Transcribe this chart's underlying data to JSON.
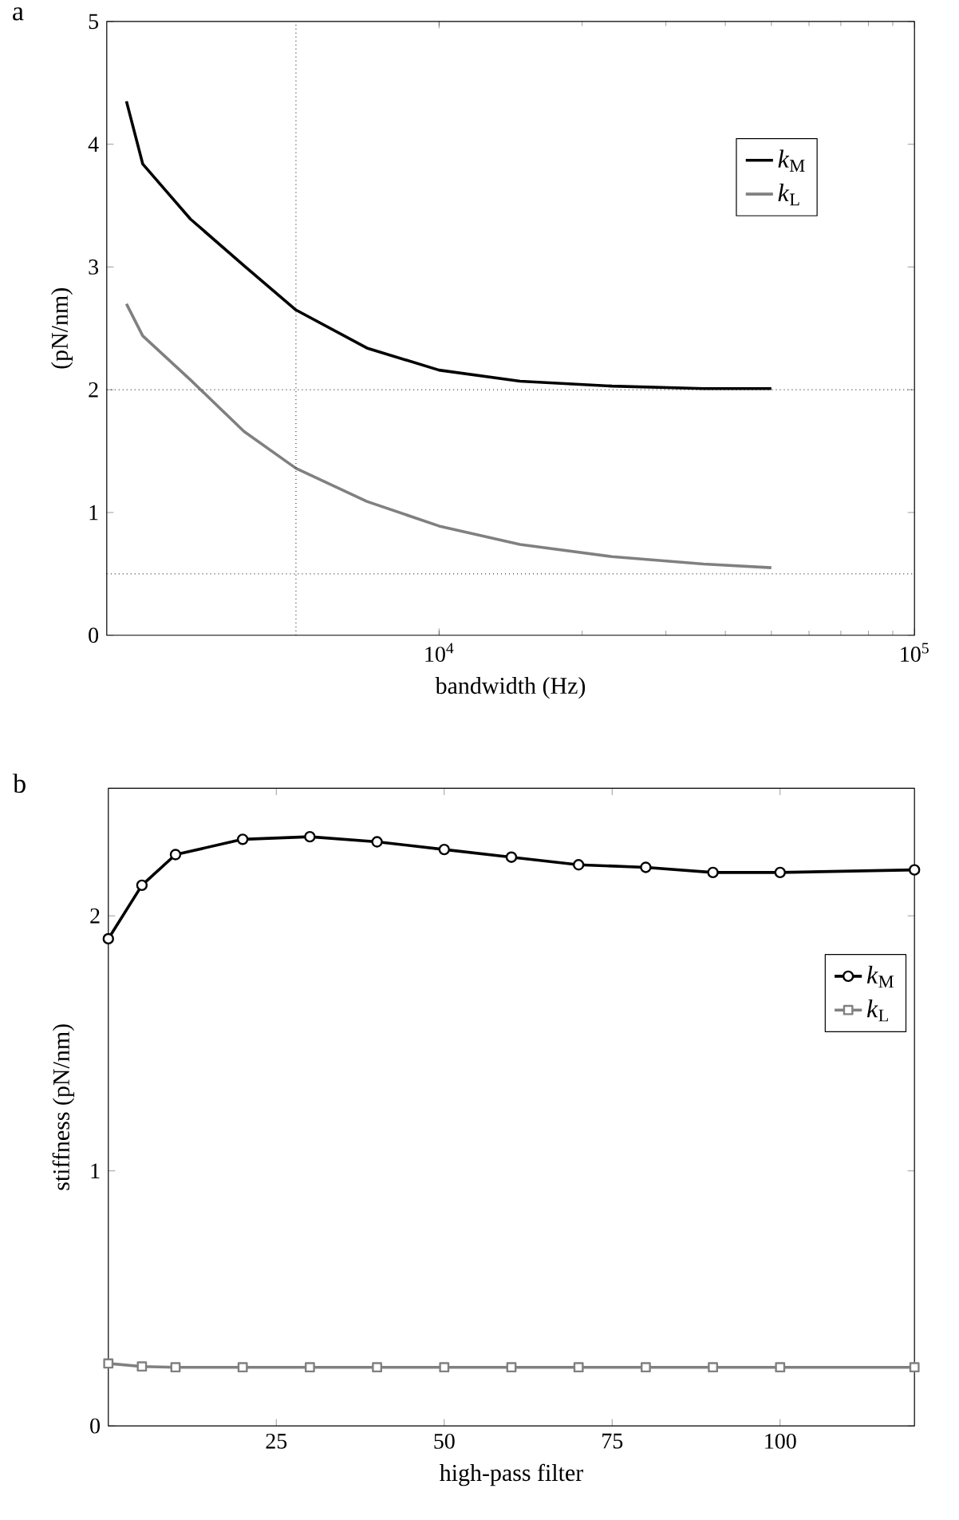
{
  "chart_data": [
    {
      "type": "line",
      "title": "a",
      "xlabel": "bandwidth (Hz)",
      "ylabel": "(pN/nm)",
      "log": "x",
      "legend": "top right",
      "xlim": [
        2000,
        100000
      ],
      "xticks": [
        {
          "value": 10000,
          "label": "10$^{4}$"
        },
        {
          "value": 100000,
          "label": "10$^{5}$"
        }
      ],
      "ylim": [
        0,
        5
      ],
      "yticks": [
        0,
        1,
        2,
        3,
        4,
        5
      ],
      "ref_lines": [
        {
          "axis": "y",
          "value": 2,
          "line_style": "dotted"
        },
        {
          "axis": "y",
          "value": 0.5,
          "line_style": "dotted"
        },
        {
          "axis": "x",
          "value": 5000,
          "line_style": "dotted"
        }
      ],
      "series": [
        {
          "name": "*k*$_{M}$",
          "color": "#000000",
          "x": [
            2200,
            2380,
            3000,
            3890,
            5000,
            7050,
            10000,
            14800,
            23100,
            36000,
            50000
          ],
          "values": [
            4.35,
            3.84,
            3.39,
            3.01,
            2.65,
            2.34,
            2.16,
            2.07,
            2.03,
            2.01,
            2.01
          ]
        },
        {
          "name": "*k*$_{L}$",
          "color": "#808080",
          "x": [
            2200,
            2380,
            3000,
            3890,
            5000,
            7050,
            10000,
            14800,
            23100,
            36000,
            50000
          ],
          "values": [
            2.7,
            2.44,
            2.08,
            1.66,
            1.36,
            1.09,
            0.89,
            0.74,
            0.64,
            0.58,
            0.55
          ]
        }
      ]
    },
    {
      "type": "line",
      "title": "b",
      "xlabel": "high-pass filter",
      "ylabel": "stiffness  (pN/nm)",
      "legend": "right",
      "xlim": [
        0,
        120
      ],
      "xticks": [
        25,
        50,
        75,
        100
      ],
      "ylim": [
        0,
        2.5
      ],
      "yticks": [
        0,
        1,
        2
      ],
      "series": [
        {
          "name": "*k*$_{M}$",
          "color": "#000000",
          "marker": "circle",
          "x": [
            0,
            5,
            10,
            20,
            30,
            40,
            50,
            60,
            70,
            80,
            90,
            100,
            120
          ],
          "values": [
            1.91,
            2.12,
            2.24,
            2.3,
            2.31,
            2.29,
            2.26,
            2.23,
            2.2,
            2.19,
            2.17,
            2.17,
            2.18
          ]
        },
        {
          "name": "*k*$_{L}$",
          "color": "#808080",
          "marker": "square",
          "x": [
            0,
            5,
            10,
            20,
            30,
            40,
            50,
            60,
            70,
            80,
            90,
            100,
            120
          ],
          "values": [
            0.245,
            0.233,
            0.23,
            0.23,
            0.23,
            0.23,
            0.23,
            0.23,
            0.23,
            0.23,
            0.23,
            0.23,
            0.23
          ]
        }
      ]
    }
  ]
}
